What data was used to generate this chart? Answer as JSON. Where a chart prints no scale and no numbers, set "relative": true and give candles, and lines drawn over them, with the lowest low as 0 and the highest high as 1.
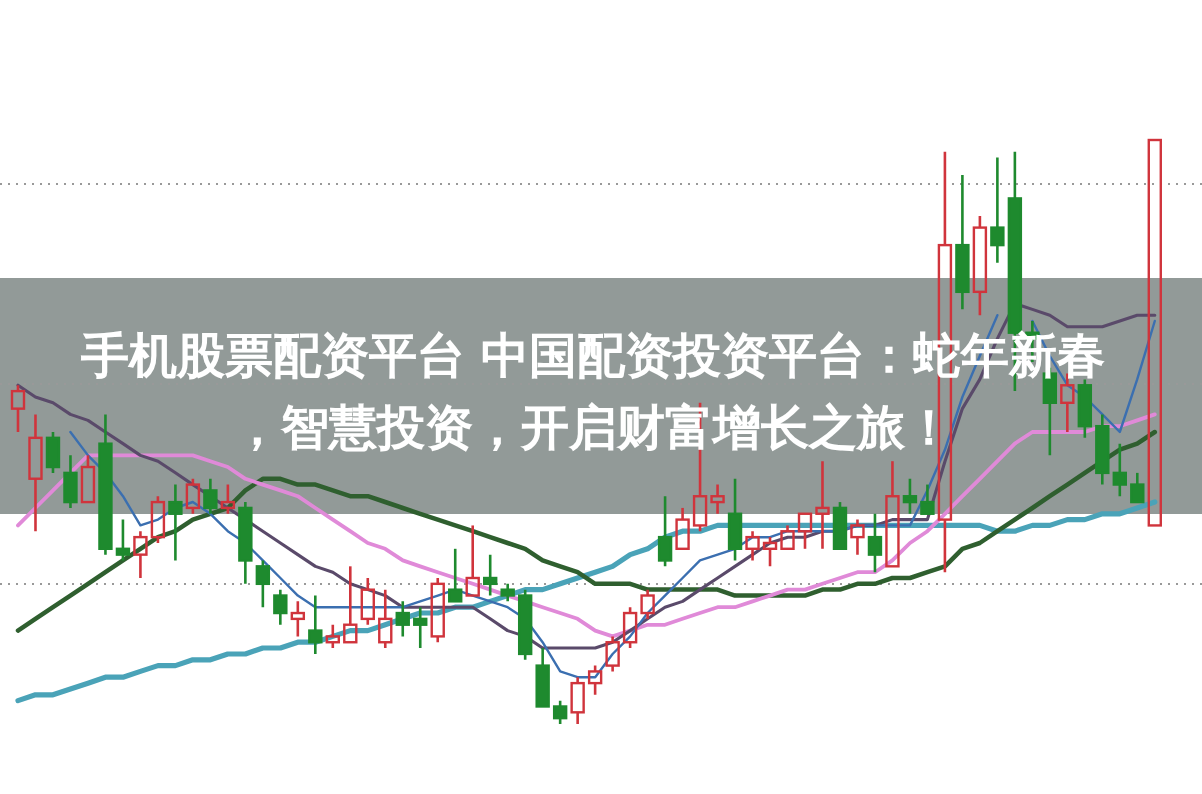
{
  "chart_data": {
    "type": "candlestick",
    "title": "手机股票配资平台 中国配资投资平台：蛇年新春，智慧投资，开启财富增长之旅！",
    "relative": true,
    "grid": "y",
    "categories": [
      null,
      null,
      null,
      null,
      null,
      null,
      null,
      null,
      null,
      null,
      null,
      null,
      null,
      null,
      null,
      null,
      null,
      null,
      null,
      null,
      null,
      null,
      null,
      null,
      null,
      null,
      null,
      null,
      null,
      null,
      null,
      null,
      null,
      null,
      null,
      null,
      null,
      null,
      null,
      null,
      null,
      null,
      null,
      null,
      null,
      null,
      null,
      null,
      null,
      null,
      null,
      null,
      null,
      null,
      null,
      null,
      null,
      null,
      null,
      null,
      null,
      null,
      null,
      null,
      null,
      null
    ],
    "ohlc": [
      [
        0.54,
        0.58,
        0.5,
        0.57
      ],
      [
        0.42,
        0.53,
        0.33,
        0.49
      ],
      [
        0.49,
        0.5,
        0.43,
        0.44
      ],
      [
        0.43,
        0.46,
        0.37,
        0.38
      ],
      [
        0.38,
        0.46,
        0.38,
        0.44
      ],
      [
        0.48,
        0.53,
        0.29,
        0.3
      ],
      [
        0.3,
        0.35,
        0.28,
        0.29
      ],
      [
        0.29,
        0.33,
        0.25,
        0.32
      ],
      [
        0.32,
        0.39,
        0.31,
        0.38
      ],
      [
        0.38,
        0.41,
        0.28,
        0.36
      ],
      [
        0.37,
        0.42,
        0.36,
        0.41
      ],
      [
        0.4,
        0.42,
        0.36,
        0.37
      ],
      [
        0.37,
        0.41,
        0.36,
        0.38
      ],
      [
        0.37,
        0.38,
        0.24,
        0.28
      ],
      [
        0.27,
        0.28,
        0.2,
        0.24
      ],
      [
        0.22,
        0.23,
        0.17,
        0.19
      ],
      [
        0.18,
        0.21,
        0.15,
        0.19
      ],
      [
        0.16,
        0.22,
        0.12,
        0.14
      ],
      [
        0.14,
        0.17,
        0.13,
        0.15
      ],
      [
        0.14,
        0.27,
        0.14,
        0.17
      ],
      [
        0.18,
        0.25,
        0.17,
        0.23
      ],
      [
        0.14,
        0.23,
        0.13,
        0.18
      ],
      [
        0.19,
        0.21,
        0.15,
        0.17
      ],
      [
        0.18,
        0.2,
        0.13,
        0.17
      ],
      [
        0.15,
        0.25,
        0.14,
        0.24
      ],
      [
        0.23,
        0.3,
        0.21,
        0.21
      ],
      [
        0.22,
        0.34,
        0.22,
        0.25
      ],
      [
        0.25,
        0.29,
        0.22,
        0.24
      ],
      [
        0.23,
        0.24,
        0.21,
        0.22
      ],
      [
        0.22,
        0.23,
        0.11,
        0.12
      ],
      [
        0.1,
        0.13,
        0.03,
        0.03
      ],
      [
        0.03,
        0.04,
        0,
        0.01
      ],
      [
        0.02,
        0.08,
        0,
        0.07
      ],
      [
        0.07,
        0.1,
        0.05,
        0.09
      ],
      [
        0.1,
        0.15,
        0.09,
        0.14
      ],
      [
        0.14,
        0.2,
        0.13,
        0.19
      ],
      [
        0.19,
        0.23,
        0.18,
        0.22
      ],
      [
        0.32,
        0.39,
        0.27,
        0.28
      ],
      [
        0.3,
        0.37,
        0.3,
        0.35
      ],
      [
        0.34,
        0.55,
        0.33,
        0.39
      ],
      [
        0.38,
        0.41,
        0.36,
        0.39
      ],
      [
        0.36,
        0.42,
        0.28,
        0.3
      ],
      [
        0.3,
        0.33,
        0.28,
        0.32
      ],
      [
        0.3,
        0.32,
        0.27,
        0.31
      ],
      [
        0.3,
        0.34,
        0.3,
        0.33
      ],
      [
        0.33,
        0.36,
        0.3,
        0.36
      ],
      [
        0.36,
        0.45,
        0.3,
        0.37
      ],
      [
        0.37,
        0.38,
        0.3,
        0.3
      ],
      [
        0.32,
        0.35,
        0.29,
        0.34
      ],
      [
        0.32,
        0.36,
        0.26,
        0.29
      ],
      [
        0.27,
        0.45,
        0.27,
        0.39
      ],
      [
        0.39,
        0.42,
        0.36,
        0.38
      ],
      [
        0.38,
        0.41,
        0.36,
        0.36
      ],
      [
        0.35,
        0.98,
        0.26,
        0.82
      ],
      [
        0.82,
        0.94,
        0.71,
        0.74
      ],
      [
        0.74,
        0.87,
        0.7,
        0.85
      ],
      [
        0.85,
        0.97,
        0.79,
        0.82
      ],
      [
        0.9,
        0.98,
        0.57,
        0.67
      ],
      [
        0.67,
        0.69,
        0.62,
        0.66
      ],
      [
        0.6,
        0.61,
        0.46,
        0.55
      ],
      [
        0.55,
        0.6,
        0.5,
        0.58
      ],
      [
        0.58,
        0.59,
        0.49,
        0.51
      ],
      [
        0.51,
        0.53,
        0.41,
        0.43
      ],
      [
        0.43,
        0.48,
        0.39,
        0.41
      ],
      [
        0.41,
        0.43,
        0.38,
        0.38
      ],
      [
        0.34,
        1,
        0.34,
        1
      ]
    ],
    "colors": [
      "#d0343c",
      "#d0343c",
      "#1e8a2e",
      "#1e8a2e",
      "#d0343c",
      "#1e8a2e",
      "#1e8a2e",
      "#d0343c",
      "#d0343c",
      "#1e8a2e",
      "#d0343c",
      "#1e8a2e",
      "#d0343c",
      "#1e8a2e",
      "#1e8a2e",
      "#1e8a2e",
      "#d0343c",
      "#1e8a2e",
      "#d0343c",
      "#d0343c",
      "#d0343c",
      "#d0343c",
      "#1e8a2e",
      "#1e8a2e",
      "#d0343c",
      "#1e8a2e",
      "#d0343c",
      "#1e8a2e",
      "#1e8a2e",
      "#1e8a2e",
      "#1e8a2e",
      "#1e8a2e",
      "#d0343c",
      "#d0343c",
      "#d0343c",
      "#d0343c",
      "#d0343c",
      "#1e8a2e",
      "#d0343c",
      "#d0343c",
      "#d0343c",
      "#1e8a2e",
      "#d0343c",
      "#d0343c",
      "#d0343c",
      "#d0343c",
      "#d0343c",
      "#1e8a2e",
      "#d0343c",
      "#1e8a2e",
      "#d0343c",
      "#1e8a2e",
      "#1e8a2e",
      "#d0343c",
      "#1e8a2e",
      "#d0343c",
      "#1e8a2e",
      "#1e8a2e",
      "#1e8a2e",
      "#1e8a2e",
      "#d0343c",
      "#1e8a2e",
      "#1e8a2e",
      "#1e8a2e",
      "#1e8a2e",
      "#d0343c"
    ],
    "series": [
      {
        "type": "line",
        "color": "#4aa3b8",
        "values": [
          0.04,
          0.05,
          0.05,
          0.06,
          0.07,
          0.08,
          0.08,
          0.09,
          0.1,
          0.1,
          0.11,
          0.11,
          0.12,
          0.12,
          0.13,
          0.13,
          0.14,
          0.14,
          0.15,
          0.16,
          0.16,
          0.17,
          0.18,
          0.19,
          0.19,
          0.2,
          0.2,
          0.21,
          0.22,
          0.23,
          0.23,
          0.24,
          0.25,
          0.26,
          0.27,
          0.29,
          0.3,
          0.32,
          0.33,
          0.33,
          0.34,
          0.34,
          0.34,
          0.34,
          0.34,
          0.34,
          0.34,
          0.34,
          0.34,
          0.34,
          0.34,
          0.34,
          0.34,
          0.34,
          0.34,
          0.34,
          0.33,
          0.33,
          0.34,
          0.34,
          0.35,
          0.35,
          0.36,
          0.36,
          0.37,
          0.38
        ]
      },
      {
        "type": "line",
        "color": "#2f5f2f",
        "values": [
          0.16,
          0.18,
          0.2,
          0.22,
          0.24,
          0.26,
          0.28,
          0.3,
          0.32,
          0.33,
          0.35,
          0.36,
          0.37,
          0.4,
          0.42,
          0.42,
          0.41,
          0.41,
          0.4,
          0.39,
          0.39,
          0.38,
          0.37,
          0.36,
          0.35,
          0.34,
          0.33,
          0.32,
          0.31,
          0.3,
          0.28,
          0.27,
          0.26,
          0.24,
          0.24,
          0.24,
          0.23,
          0.23,
          0.23,
          0.23,
          0.23,
          0.22,
          0.22,
          0.22,
          0.22,
          0.22,
          0.23,
          0.23,
          0.24,
          0.24,
          0.25,
          0.25,
          0.26,
          0.27,
          0.3,
          0.31,
          0.33,
          0.35,
          0.37,
          0.39,
          0.41,
          0.43,
          0.45,
          0.47,
          0.48,
          0.5
        ]
      },
      {
        "type": "line",
        "color": "#e08ad8",
        "values": [
          0.34,
          0.37,
          0.4,
          0.43,
          0.46,
          0.46,
          0.46,
          0.46,
          0.46,
          0.46,
          0.46,
          0.45,
          0.44,
          0.42,
          0.41,
          0.4,
          0.39,
          0.37,
          0.35,
          0.33,
          0.31,
          0.3,
          0.28,
          0.27,
          0.26,
          0.25,
          0.24,
          0.23,
          0.22,
          0.21,
          0.2,
          0.19,
          0.18,
          0.16,
          0.15,
          0.16,
          0.17,
          0.17,
          0.18,
          0.19,
          0.2,
          0.2,
          0.21,
          0.22,
          0.23,
          0.23,
          0.24,
          0.25,
          0.26,
          0.26,
          0.28,
          0.31,
          0.33,
          0.36,
          0.39,
          0.42,
          0.45,
          0.48,
          0.5,
          0.5,
          0.5,
          0.5,
          0.51,
          0.51,
          0.52,
          0.53
        ]
      },
      {
        "type": "line",
        "color": "#5a4a6a",
        "values": [
          0.58,
          0.56,
          0.55,
          0.53,
          0.52,
          0.5,
          0.48,
          0.46,
          0.45,
          0.43,
          0.41,
          0.39,
          0.37,
          0.35,
          0.33,
          0.31,
          0.29,
          0.27,
          0.26,
          0.24,
          0.23,
          0.22,
          0.2,
          0.2,
          0.2,
          0.2,
          0.2,
          0.18,
          0.16,
          0.15,
          0.13,
          0.13,
          0.13,
          0.13,
          0.14,
          0.16,
          0.18,
          0.2,
          0.21,
          0.23,
          0.25,
          0.27,
          0.29,
          0.31,
          0.32,
          0.32,
          0.33,
          0.33,
          0.34,
          0.34,
          0.35,
          0.35,
          0.35,
          0.45,
          0.54,
          0.59,
          0.66,
          0.72,
          0.71,
          0.7,
          0.68,
          0.68,
          0.68,
          0.69,
          0.7,
          0.7
        ]
      },
      {
        "type": "line",
        "color": "#3b6fb0",
        "values": [
          null,
          null,
          null,
          0.5,
          0.46,
          0.43,
          0.39,
          0.34,
          0.35,
          0.37,
          0.38,
          0.36,
          0.33,
          0.31,
          0.28,
          0.25,
          0.22,
          0.2,
          0.2,
          0.2,
          0.2,
          0.2,
          0.2,
          0.21,
          0.22,
          0.23,
          0.22,
          0.21,
          0.2,
          0.18,
          0.14,
          0.09,
          0.08,
          0.08,
          0.12,
          0.15,
          0.19,
          0.22,
          0.25,
          0.28,
          0.29,
          0.3,
          0.32,
          0.32,
          0.33,
          0.33,
          0.33,
          0.33,
          0.34,
          0.34,
          0.34,
          0.34,
          0.4,
          0.47,
          0.56,
          0.63,
          0.7,
          null,
          0.69,
          0.63,
          0.58,
          0.56,
          0.53,
          0.5,
          0.59,
          0.69
        ]
      }
    ]
  }
}
